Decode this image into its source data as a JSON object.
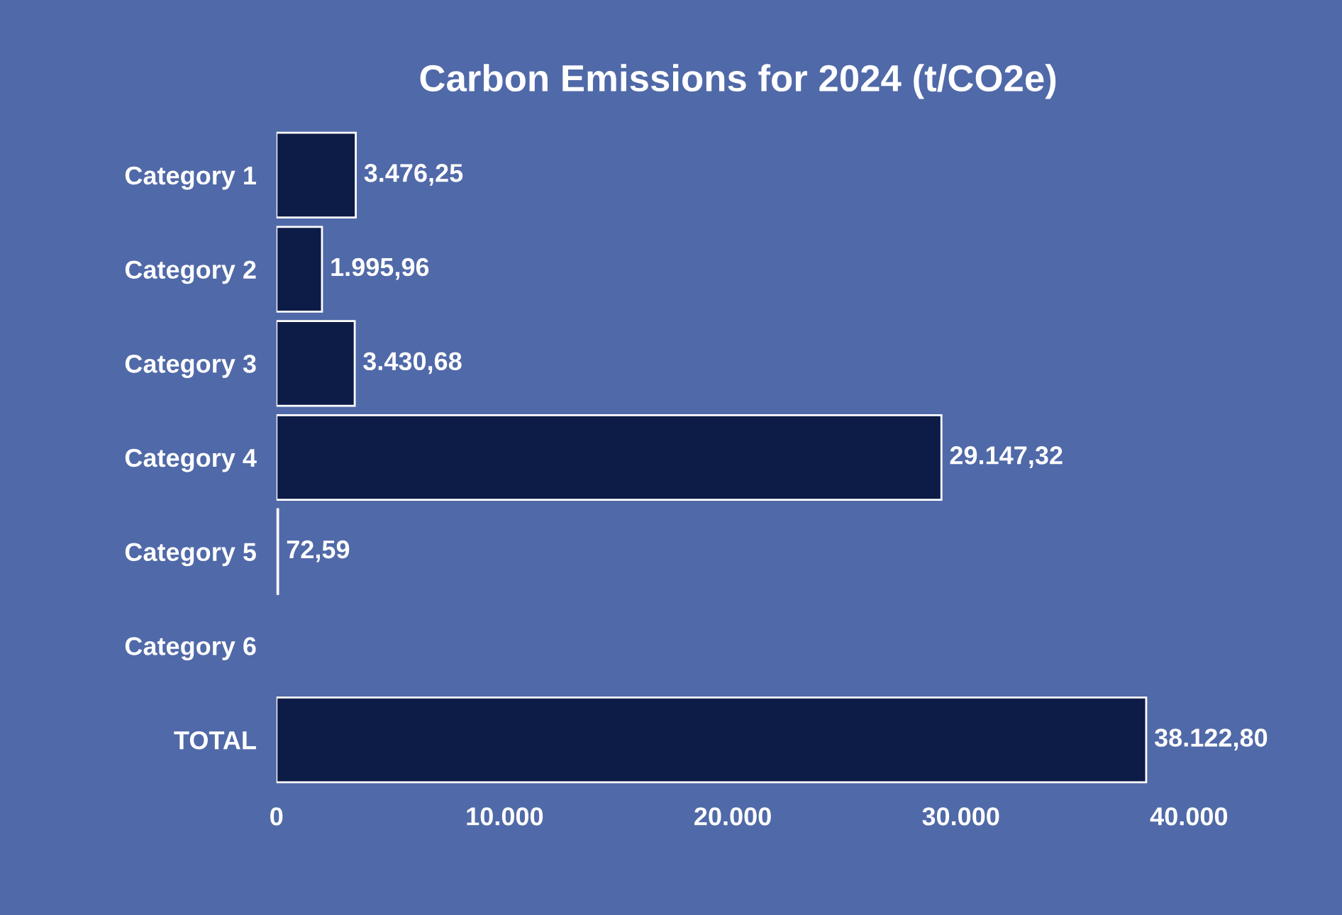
{
  "chart_data": {
    "type": "bar",
    "orientation": "horizontal",
    "title": "Carbon Emissions for 2024 (t/CO2e)",
    "categories": [
      "Category 1",
      "Category 2",
      "Category 3",
      "Category 4",
      "Category 5",
      "Category 6",
      "TOTAL"
    ],
    "values": [
      3476.25,
      1995.96,
      3430.68,
      29147.32,
      72.59,
      null,
      38122.8
    ],
    "value_labels": [
      "3.476,25",
      "1.995,96",
      "3.430,68",
      "29.147,32",
      "72,59",
      null,
      "38.122,80"
    ],
    "color": "#0d1b47",
    "xlim": [
      0,
      40000
    ],
    "xticks": [
      0,
      {
        "value": 10000,
        "label": "10.000"
      },
      {
        "value": 20000,
        "label": "20.000"
      },
      {
        "value": 30000,
        "label": "30.000"
      },
      {
        "value": 40000,
        "label": "40.000"
      }
    ],
    "grid": false,
    "legend": false
  }
}
